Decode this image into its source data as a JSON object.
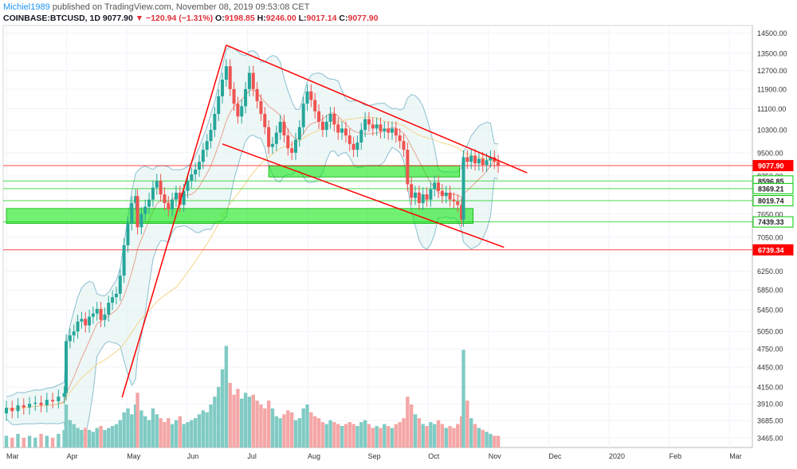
{
  "header": {
    "author": "Michiel1989",
    "published": "published on TradingView.com, November 08, 2019 09:53:08 CET",
    "symbol": "COINBASE:BTCUSD, 1D",
    "last": "9077.90",
    "change": "▼ −120.94 (−1.31%)",
    "ohlc_o_label": "O:",
    "ohlc_o": "9198.85",
    "ohlc_h_label": "H:",
    "ohlc_h": "9246.00",
    "ohlc_l_label": "L:",
    "ohlc_l": "9017.14",
    "ohlc_c_label": "C:",
    "ohlc_c": "9077.90"
  },
  "colors": {
    "up": "#26a69a",
    "down": "#ef5350",
    "vol_up": "#80cbc4",
    "vol_down": "#f4a6a6",
    "zone": "#00e600",
    "resistance": "#ff0000",
    "band": "#8cbfd0",
    "ma_slow": "#f5d58a",
    "ma_fast": "#e8a090"
  },
  "chart_data": {
    "type": "candlestick",
    "title": "COINBASE:BTCUSD, 1D",
    "x_ticks": [
      "Mar",
      "Apr",
      "May",
      "Jun",
      "Jul",
      "Aug",
      "Sep",
      "Oct",
      "Nov",
      "Dec",
      "2020",
      "Feb",
      "Mar"
    ],
    "y_ticks": [
      "14500.00",
      "13500.00",
      "12700.00",
      "11900.00",
      "11100.00",
      "10300.00",
      "9500.00",
      "8750.00",
      "7650.00",
      "7050.00",
      "6739.34",
      "6250.00",
      "5850.00",
      "5450.00",
      "5050.00",
      "4750.00",
      "4450.00",
      "4150.00",
      "3910.00",
      "3685.00",
      "3465.00"
    ],
    "ylim": [
      3350,
      14900
    ],
    "y_scale": "log",
    "price_labels": [
      {
        "value": 9077.9,
        "text": "9077.90",
        "color": "#ff0000"
      },
      {
        "value": 8596.85,
        "text": "8596.85",
        "color": "#00cc00"
      },
      {
        "value": 8369.21,
        "text": "8369.21",
        "color": "#00cc00"
      },
      {
        "value": 8019.74,
        "text": "8019.74",
        "color": "#00cc00"
      },
      {
        "value": 7439.33,
        "text": "7439.33",
        "color": "#00cc00"
      },
      {
        "value": 6739.34,
        "text": "6739.34",
        "color": "#ff0000"
      }
    ],
    "support_zones": [
      {
        "from_day": 136,
        "to_day": 235,
        "low": 8720,
        "high": 9070
      },
      {
        "from_day": 0,
        "to_day": 242,
        "low": 7400,
        "high": 7800
      }
    ],
    "trend_lines": [
      {
        "from": [
          60,
          4000
        ],
        "to": [
          114,
          13900
        ]
      },
      {
        "from": [
          114,
          13900
        ],
        "to": [
          270,
          8850
        ]
      },
      {
        "from": [
          112,
          9800
        ],
        "to": [
          258,
          6800
        ]
      }
    ],
    "candles": [
      [
        0,
        3780,
        3855
      ],
      [
        3,
        3855,
        3810
      ],
      [
        6,
        3810,
        3890
      ],
      [
        9,
        3890,
        3860
      ],
      [
        12,
        3860,
        3910
      ],
      [
        15,
        3910,
        3925
      ],
      [
        18,
        3925,
        3890
      ],
      [
        21,
        3890,
        3965
      ],
      [
        24,
        3965,
        3945
      ],
      [
        27,
        3945,
        4010
      ],
      [
        30,
        4010,
        4060
      ],
      [
        31,
        4060,
        4880
      ],
      [
        33,
        4880,
        4980
      ],
      [
        35,
        4980,
        5050
      ],
      [
        37,
        5050,
        5230
      ],
      [
        39,
        5230,
        5280
      ],
      [
        41,
        5280,
        5160
      ],
      [
        43,
        5160,
        5320
      ],
      [
        45,
        5320,
        5380
      ],
      [
        47,
        5380,
        5470
      ],
      [
        49,
        5470,
        5260
      ],
      [
        51,
        5260,
        5360
      ],
      [
        53,
        5360,
        5590
      ],
      [
        55,
        5590,
        5700
      ],
      [
        57,
        5700,
        5770
      ],
      [
        59,
        5770,
        6150
      ],
      [
        61,
        6150,
        6850
      ],
      [
        63,
        6850,
        7400
      ],
      [
        65,
        7400,
        7950
      ],
      [
        67,
        7950,
        8150
      ],
      [
        68,
        8150,
        7300
      ],
      [
        70,
        7300,
        7650
      ],
      [
        72,
        7650,
        7850
      ],
      [
        74,
        7850,
        8050
      ],
      [
        76,
        8050,
        8400
      ],
      [
        78,
        8400,
        8600
      ],
      [
        80,
        8600,
        8200
      ],
      [
        82,
        8200,
        7950
      ],
      [
        84,
        7950,
        7780
      ],
      [
        86,
        7780,
        8050
      ],
      [
        88,
        8050,
        8250
      ],
      [
        90,
        8250,
        7900
      ],
      [
        92,
        7900,
        8300
      ],
      [
        94,
        8300,
        8600
      ],
      [
        96,
        8600,
        8800
      ],
      [
        98,
        8800,
        8950
      ],
      [
        100,
        8950,
        9200
      ],
      [
        102,
        9200,
        9600
      ],
      [
        104,
        9600,
        9900
      ],
      [
        106,
        9900,
        10300
      ],
      [
        108,
        10300,
        10900
      ],
      [
        110,
        10900,
        11600
      ],
      [
        112,
        11600,
        12300
      ],
      [
        114,
        12300,
        12900
      ],
      [
        116,
        12900,
        11900
      ],
      [
        118,
        11900,
        11300
      ],
      [
        120,
        11300,
        10800
      ],
      [
        122,
        10800,
        11200
      ],
      [
        124,
        11200,
        11900
      ],
      [
        126,
        11900,
        12600
      ],
      [
        128,
        12600,
        11900
      ],
      [
        130,
        11900,
        11400
      ],
      [
        132,
        11400,
        10900
      ],
      [
        134,
        10900,
        10400
      ],
      [
        136,
        10400,
        9700
      ],
      [
        138,
        9700,
        9800
      ],
      [
        140,
        9800,
        10200
      ],
      [
        142,
        10200,
        10600
      ],
      [
        144,
        10600,
        10100
      ],
      [
        146,
        10100,
        9650
      ],
      [
        148,
        9650,
        9500
      ],
      [
        150,
        9500,
        9950
      ],
      [
        152,
        9950,
        10400
      ],
      [
        154,
        10400,
        11300
      ],
      [
        156,
        11300,
        11800
      ],
      [
        158,
        11800,
        11450
      ],
      [
        160,
        11450,
        11000
      ],
      [
        162,
        11000,
        10600
      ],
      [
        164,
        10600,
        10300
      ],
      [
        166,
        10300,
        10600
      ],
      [
        168,
        10600,
        10900
      ],
      [
        170,
        10900,
        10500
      ],
      [
        172,
        10500,
        10200
      ],
      [
        174,
        10200,
        10350
      ],
      [
        176,
        10350,
        10100
      ],
      [
        178,
        10100,
        9800
      ],
      [
        180,
        9800,
        9600
      ],
      [
        182,
        9600,
        9850
      ],
      [
        184,
        9850,
        10300
      ],
      [
        186,
        10300,
        10700
      ],
      [
        188,
        10700,
        10500
      ],
      [
        190,
        10500,
        10350
      ],
      [
        192,
        10350,
        10500
      ],
      [
        194,
        10500,
        10250
      ],
      [
        196,
        10250,
        10350
      ],
      [
        198,
        10350,
        10200
      ],
      [
        200,
        10200,
        10350
      ],
      [
        202,
        10350,
        10100
      ],
      [
        204,
        10100,
        9900
      ],
      [
        206,
        9900,
        9600
      ],
      [
        208,
        9600,
        8500
      ],
      [
        210,
        8500,
        8100
      ],
      [
        212,
        8100,
        8250
      ],
      [
        214,
        8250,
        7950
      ],
      [
        216,
        7950,
        8200
      ],
      [
        218,
        8200,
        8050
      ],
      [
        220,
        8050,
        8350
      ],
      [
        222,
        8350,
        8550
      ],
      [
        224,
        8550,
        8300
      ],
      [
        226,
        8300,
        8150
      ],
      [
        228,
        8150,
        8250
      ],
      [
        230,
        8250,
        8050
      ],
      [
        232,
        8050,
        8000
      ],
      [
        234,
        8000,
        7900
      ],
      [
        236,
        7900,
        7500
      ],
      [
        237,
        7500,
        9350
      ],
      [
        239,
        9350,
        9200
      ],
      [
        241,
        9200,
        9400
      ],
      [
        243,
        9400,
        9150
      ],
      [
        245,
        9150,
        9300
      ],
      [
        247,
        9300,
        9100
      ],
      [
        249,
        9100,
        9250
      ],
      [
        251,
        9250,
        9350
      ],
      [
        253,
        9350,
        9200
      ],
      [
        255,
        9200,
        9078
      ]
    ],
    "volume": [
      [
        0,
        0.06
      ],
      [
        3,
        0.05
      ],
      [
        6,
        0.07
      ],
      [
        9,
        0.05
      ],
      [
        12,
        0.06
      ],
      [
        15,
        0.05
      ],
      [
        18,
        0.07
      ],
      [
        21,
        0.06
      ],
      [
        24,
        0.05
      ],
      [
        27,
        0.07
      ],
      [
        30,
        0.09
      ],
      [
        31,
        0.22
      ],
      [
        33,
        0.14
      ],
      [
        35,
        0.12
      ],
      [
        37,
        0.1
      ],
      [
        39,
        0.09
      ],
      [
        41,
        0.1
      ],
      [
        43,
        0.09
      ],
      [
        45,
        0.08
      ],
      [
        47,
        0.1
      ],
      [
        49,
        0.11
      ],
      [
        51,
        0.09
      ],
      [
        53,
        0.1
      ],
      [
        55,
        0.11
      ],
      [
        57,
        0.12
      ],
      [
        59,
        0.14
      ],
      [
        61,
        0.18
      ],
      [
        63,
        0.2
      ],
      [
        65,
        0.17
      ],
      [
        67,
        0.22
      ],
      [
        68,
        0.28
      ],
      [
        70,
        0.19
      ],
      [
        72,
        0.16
      ],
      [
        74,
        0.14
      ],
      [
        76,
        0.2
      ],
      [
        78,
        0.17
      ],
      [
        80,
        0.15
      ],
      [
        82,
        0.13
      ],
      [
        84,
        0.15
      ],
      [
        86,
        0.12
      ],
      [
        88,
        0.14
      ],
      [
        90,
        0.16
      ],
      [
        92,
        0.12
      ],
      [
        94,
        0.13
      ],
      [
        96,
        0.14
      ],
      [
        98,
        0.15
      ],
      [
        100,
        0.17
      ],
      [
        102,
        0.19
      ],
      [
        104,
        0.18
      ],
      [
        106,
        0.22
      ],
      [
        108,
        0.26
      ],
      [
        110,
        0.31
      ],
      [
        112,
        0.4
      ],
      [
        114,
        0.52
      ],
      [
        116,
        0.33
      ],
      [
        118,
        0.27
      ],
      [
        120,
        0.3
      ],
      [
        122,
        0.25
      ],
      [
        124,
        0.28
      ],
      [
        126,
        0.26
      ],
      [
        128,
        0.27
      ],
      [
        130,
        0.24
      ],
      [
        132,
        0.22
      ],
      [
        134,
        0.2
      ],
      [
        136,
        0.24
      ],
      [
        138,
        0.2
      ],
      [
        140,
        0.16
      ],
      [
        142,
        0.15
      ],
      [
        144,
        0.17
      ],
      [
        146,
        0.19
      ],
      [
        148,
        0.18
      ],
      [
        150,
        0.14
      ],
      [
        152,
        0.15
      ],
      [
        154,
        0.2
      ],
      [
        156,
        0.22
      ],
      [
        158,
        0.18
      ],
      [
        160,
        0.16
      ],
      [
        162,
        0.15
      ],
      [
        164,
        0.13
      ],
      [
        166,
        0.12
      ],
      [
        168,
        0.14
      ],
      [
        170,
        0.13
      ],
      [
        172,
        0.12
      ],
      [
        174,
        0.11
      ],
      [
        176,
        0.12
      ],
      [
        178,
        0.13
      ],
      [
        180,
        0.12
      ],
      [
        182,
        0.11
      ],
      [
        184,
        0.13
      ],
      [
        186,
        0.14
      ],
      [
        188,
        0.12
      ],
      [
        190,
        0.1
      ],
      [
        192,
        0.11
      ],
      [
        194,
        0.1
      ],
      [
        196,
        0.12
      ],
      [
        198,
        0.11
      ],
      [
        200,
        0.1
      ],
      [
        202,
        0.12
      ],
      [
        204,
        0.13
      ],
      [
        206,
        0.15
      ],
      [
        208,
        0.26
      ],
      [
        210,
        0.22
      ],
      [
        212,
        0.17
      ],
      [
        214,
        0.15
      ],
      [
        216,
        0.12
      ],
      [
        218,
        0.11
      ],
      [
        220,
        0.13
      ],
      [
        222,
        0.12
      ],
      [
        224,
        0.14
      ],
      [
        226,
        0.12
      ],
      [
        228,
        0.1
      ],
      [
        230,
        0.11
      ],
      [
        232,
        0.1
      ],
      [
        234,
        0.12
      ],
      [
        236,
        0.16
      ],
      [
        237,
        0.5
      ],
      [
        239,
        0.24
      ],
      [
        241,
        0.15
      ],
      [
        243,
        0.12
      ],
      [
        245,
        0.1
      ],
      [
        247,
        0.09
      ],
      [
        249,
        0.08
      ],
      [
        251,
        0.07
      ],
      [
        253,
        0.06
      ],
      [
        255,
        0.06
      ]
    ]
  }
}
